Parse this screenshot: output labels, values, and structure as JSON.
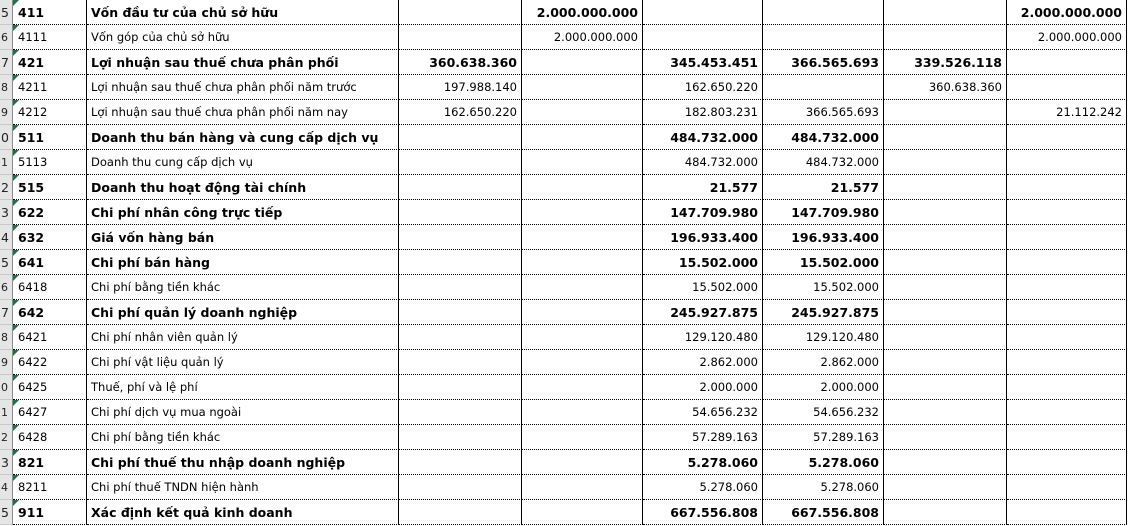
{
  "app": {
    "kind": "spreadsheet-trial-balance",
    "language": "vi"
  },
  "colors": {
    "grid_line": "#000000",
    "row_header_bg": "#E5E5E5",
    "row_header_border": "#8C8C8C",
    "error_triangle_green": "#1E7245",
    "cell_bg": "#FFFFFF",
    "text": "#000000"
  },
  "table": {
    "value_column_count": 6,
    "rows": [
      {
        "no": "5",
        "code": "411",
        "name": "Vốn đầu tư của chủ sở hữu",
        "bold": true,
        "values": [
          "",
          "2.000.000.000",
          "",
          "",
          "",
          "2.000.000.000"
        ]
      },
      {
        "no": "6",
        "code": "4111",
        "name": "Vốn góp của chủ sở hữu",
        "bold": false,
        "values": [
          "",
          "2.000.000.000",
          "",
          "",
          "",
          "2.000.000.000"
        ]
      },
      {
        "no": "7",
        "code": "421",
        "name": "Lợi nhuận sau thuế chưa phân phối",
        "bold": true,
        "values": [
          "360.638.360",
          "",
          "345.453.451",
          "366.565.693",
          "339.526.118",
          ""
        ]
      },
      {
        "no": "8",
        "code": "4211",
        "name": "Lợi nhuận sau thuế chưa phân phối năm trước",
        "bold": false,
        "values": [
          "197.988.140",
          "",
          "162.650.220",
          "",
          "360.638.360",
          ""
        ]
      },
      {
        "no": "9",
        "code": "4212",
        "name": "Lợi nhuận sau thuế chưa phân phối năm nay",
        "bold": false,
        "values": [
          "162.650.220",
          "",
          "182.803.231",
          "366.565.693",
          "",
          "21.112.242"
        ]
      },
      {
        "no": "0",
        "code": "511",
        "name": "Doanh thu bán hàng và cung cấp dịch vụ",
        "bold": true,
        "values": [
          "",
          "",
          "484.732.000",
          "484.732.000",
          "",
          ""
        ]
      },
      {
        "no": "1",
        "code": "5113",
        "name": "Doanh thu cung cấp dịch vụ",
        "bold": false,
        "values": [
          "",
          "",
          "484.732.000",
          "484.732.000",
          "",
          ""
        ]
      },
      {
        "no": "2",
        "code": "515",
        "name": "Doanh thu hoạt động tài chính",
        "bold": true,
        "values": [
          "",
          "",
          "21.577",
          "21.577",
          "",
          ""
        ]
      },
      {
        "no": "3",
        "code": "622",
        "name": "Chi phí nhân công trực tiếp",
        "bold": true,
        "values": [
          "",
          "",
          "147.709.980",
          "147.709.980",
          "",
          ""
        ]
      },
      {
        "no": "4",
        "code": "632",
        "name": "Giá vốn hàng bán",
        "bold": true,
        "values": [
          "",
          "",
          "196.933.400",
          "196.933.400",
          "",
          ""
        ]
      },
      {
        "no": "5",
        "code": "641",
        "name": "Chi phí bán hàng",
        "bold": true,
        "values": [
          "",
          "",
          "15.502.000",
          "15.502.000",
          "",
          ""
        ]
      },
      {
        "no": "6",
        "code": "6418",
        "name": "Chi phí bằng tiền khác",
        "bold": false,
        "values": [
          "",
          "",
          "15.502.000",
          "15.502.000",
          "",
          ""
        ]
      },
      {
        "no": "7",
        "code": "642",
        "name": "Chi phí quản lý doanh nghiệp",
        "bold": true,
        "values": [
          "",
          "",
          "245.927.875",
          "245.927.875",
          "",
          ""
        ]
      },
      {
        "no": "8",
        "code": "6421",
        "name": "Chi phí nhân viên quản lý",
        "bold": false,
        "values": [
          "",
          "",
          "129.120.480",
          "129.120.480",
          "",
          ""
        ]
      },
      {
        "no": "9",
        "code": "6422",
        "name": "Chi phí vật liệu quản lý",
        "bold": false,
        "values": [
          "",
          "",
          "2.862.000",
          "2.862.000",
          "",
          ""
        ]
      },
      {
        "no": "0",
        "code": "6425",
        "name": "Thuế, phí và lệ phí",
        "bold": false,
        "values": [
          "",
          "",
          "2.000.000",
          "2.000.000",
          "",
          ""
        ]
      },
      {
        "no": "1",
        "code": "6427",
        "name": "Chi phí dịch vụ mua ngoài",
        "bold": false,
        "values": [
          "",
          "",
          "54.656.232",
          "54.656.232",
          "",
          ""
        ]
      },
      {
        "no": "2",
        "code": "6428",
        "name": "Chi phí bằng tiền khác",
        "bold": false,
        "values": [
          "",
          "",
          "57.289.163",
          "57.289.163",
          "",
          ""
        ]
      },
      {
        "no": "3",
        "code": "821",
        "name": "Chi phí thuế thu nhập doanh nghiệp",
        "bold": true,
        "values": [
          "",
          "",
          "5.278.060",
          "5.278.060",
          "",
          ""
        ]
      },
      {
        "no": "4",
        "code": "8211",
        "name": "Chi phí thuế TNDN hiện hành",
        "bold": false,
        "values": [
          "",
          "",
          "5.278.060",
          "5.278.060",
          "",
          ""
        ]
      },
      {
        "no": "5",
        "code": "911",
        "name": "Xác định kết quả kinh doanh",
        "bold": true,
        "values": [
          "",
          "",
          "667.556.808",
          "667.556.808",
          "",
          ""
        ]
      }
    ]
  }
}
